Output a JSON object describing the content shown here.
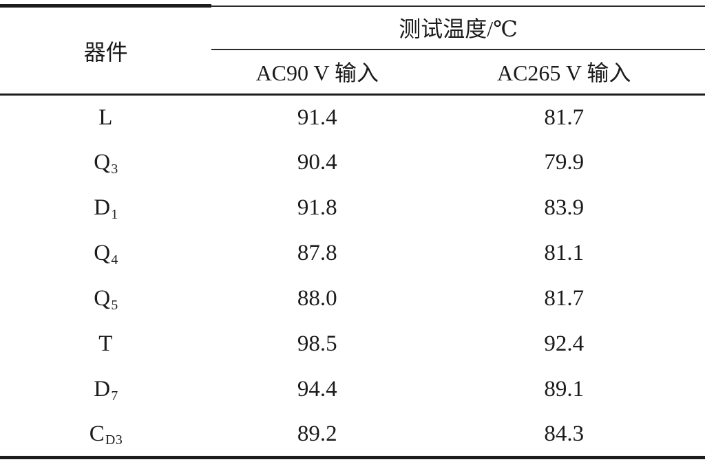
{
  "table": {
    "col1_header": "器件",
    "span_header": "测试温度/℃",
    "col2_header": "AC90 V 输入",
    "col3_header": "AC265 V 输入",
    "rows": [
      {
        "device": "L",
        "device_sub": "",
        "ac90": "91.4",
        "ac265": "81.7"
      },
      {
        "device": "Q",
        "device_sub": "3",
        "ac90": "90.4",
        "ac265": "79.9"
      },
      {
        "device": "D",
        "device_sub": "1",
        "ac90": "91.8",
        "ac265": "83.9"
      },
      {
        "device": "Q",
        "device_sub": "4",
        "ac90": "87.8",
        "ac265": "81.1"
      },
      {
        "device": "Q",
        "device_sub": "5",
        "ac90": "88.0",
        "ac265": "81.7"
      },
      {
        "device": "T",
        "device_sub": "",
        "ac90": "98.5",
        "ac265": "92.4"
      },
      {
        "device": "D",
        "device_sub": "7",
        "ac90": "94.4",
        "ac265": "89.1"
      },
      {
        "device": "C",
        "device_sub": "D3",
        "ac90": "89.2",
        "ac265": "84.3"
      }
    ]
  },
  "colors": {
    "text": "#1b1b1b",
    "rule": "#1c1c1c",
    "background": "#ffffff"
  },
  "chart_data": {
    "type": "table",
    "title": "测试温度/℃",
    "columns": [
      "器件",
      "AC90 V 输入",
      "AC265 V 输入"
    ],
    "rows": [
      [
        "L",
        91.4,
        81.7
      ],
      [
        "Q3",
        90.4,
        79.9
      ],
      [
        "D1",
        91.8,
        83.9
      ],
      [
        "Q4",
        87.8,
        81.1
      ],
      [
        "Q5",
        88.0,
        81.7
      ],
      [
        "T",
        98.5,
        92.4
      ],
      [
        "D7",
        94.4,
        89.1
      ],
      [
        "CD3",
        89.2,
        84.3
      ]
    ]
  }
}
